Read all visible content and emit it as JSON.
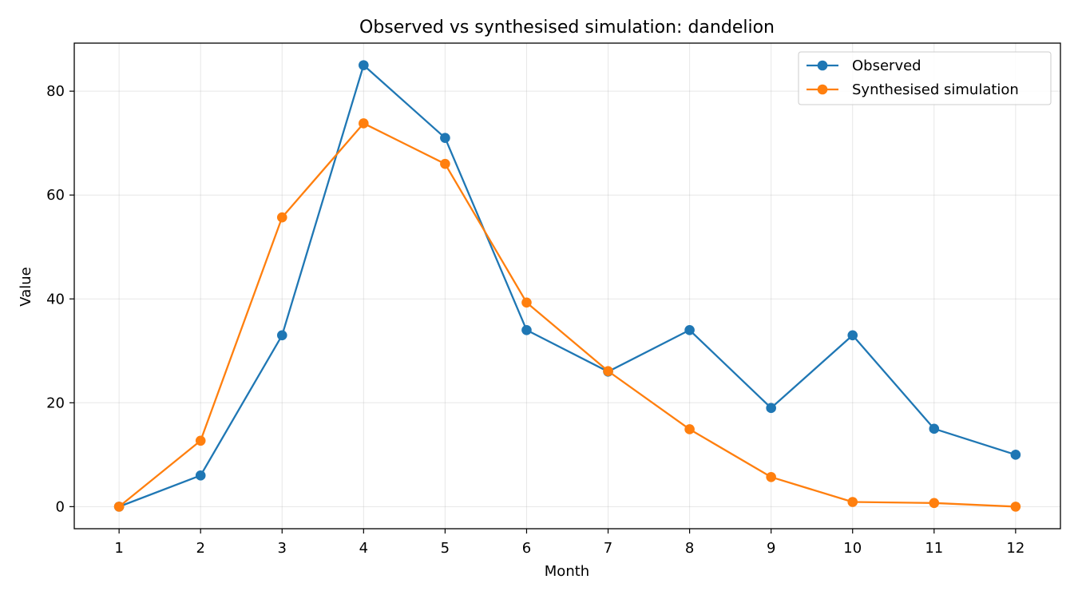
{
  "chart_data": {
    "type": "line",
    "title": "Observed vs synthesised simulation: dandelion",
    "xlabel": "Month",
    "ylabel": "Value",
    "x": [
      1,
      2,
      3,
      4,
      5,
      6,
      7,
      8,
      9,
      10,
      11,
      12
    ],
    "xticks": [
      "1",
      "2",
      "3",
      "4",
      "5",
      "6",
      "7",
      "8",
      "9",
      "10",
      "11",
      "12"
    ],
    "yticks": [
      0,
      20,
      40,
      60,
      80
    ],
    "xlim": [
      0.45,
      12.55
    ],
    "ylim": [
      -4.25,
      89.25
    ],
    "grid": true,
    "legend_position": "top-right",
    "series": [
      {
        "name": "Observed",
        "color": "#1f77b4",
        "marker": "circle",
        "values": [
          0,
          6,
          33,
          85,
          71,
          34,
          26,
          34,
          19,
          33,
          15,
          10
        ]
      },
      {
        "name": "Synthesised simulation",
        "color": "#ff7f0e",
        "marker": "circle",
        "values": [
          0,
          12.7,
          55.7,
          73.8,
          66,
          39.3,
          26.1,
          14.9,
          5.7,
          0.9,
          0.7,
          0
        ]
      }
    ]
  }
}
